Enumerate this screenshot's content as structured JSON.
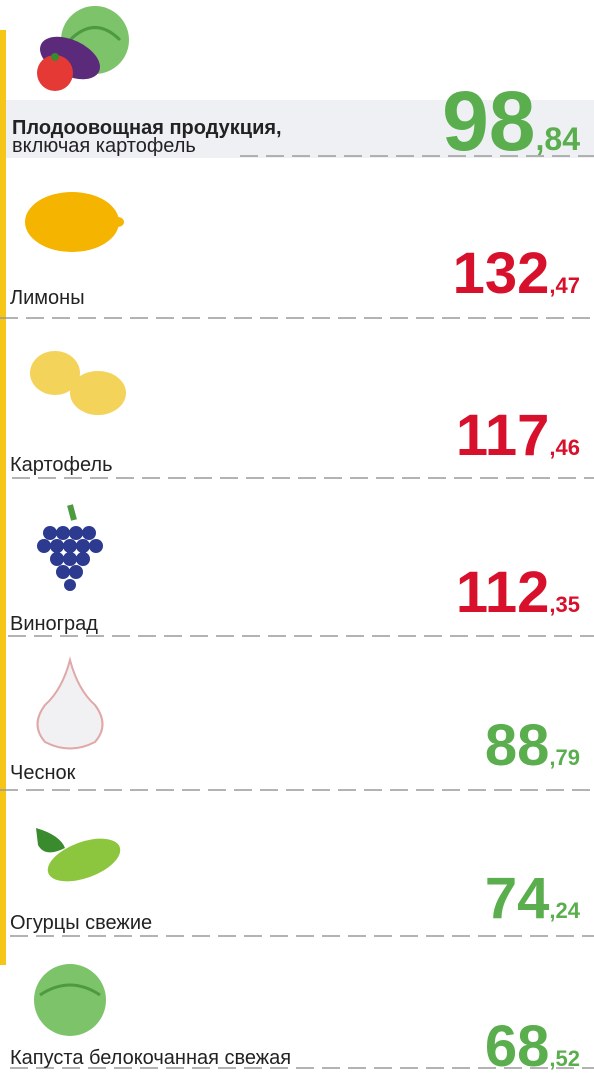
{
  "items": [
    {
      "label": "Плодоовощная продукция,",
      "sublabel": "включая картофель",
      "int": "98",
      "frac": ",84",
      "color": "#5aae4e"
    },
    {
      "label": "Лимоны",
      "int": "132",
      "frac": ",47",
      "color": "#d7102b"
    },
    {
      "label": "Картофель",
      "int": "117",
      "frac": ",46",
      "color": "#d7102b"
    },
    {
      "label": "Виноград",
      "int": "112",
      "frac": ",35",
      "color": "#d7102b"
    },
    {
      "label": "Чеснок",
      "int": "88",
      "frac": ",79",
      "color": "#5aae4e"
    },
    {
      "label": "Огурцы свежие",
      "int": "74",
      "frac": ",24",
      "color": "#5aae4e"
    },
    {
      "label": "Капуста белокочанная свежая",
      "int": "68",
      "frac": ",52",
      "color": "#5aae4e"
    }
  ]
}
